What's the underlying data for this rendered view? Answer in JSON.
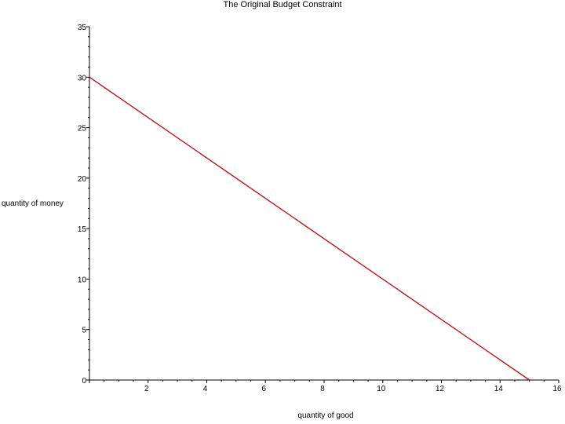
{
  "chart_data": {
    "type": "line",
    "title": "The Original Budget Constraint",
    "xlabel": "quantity of good",
    "ylabel": "quantity of money",
    "xlim": [
      0,
      16
    ],
    "ylim": [
      0,
      35
    ],
    "xticks": [
      2,
      4,
      6,
      8,
      10,
      12,
      14,
      16
    ],
    "yticks": [
      0,
      5,
      10,
      15,
      20,
      25,
      30,
      35
    ],
    "grid": false,
    "series": [
      {
        "color": "#c0151b",
        "x": [
          0,
          15
        ],
        "y": [
          30,
          0
        ]
      }
    ]
  }
}
